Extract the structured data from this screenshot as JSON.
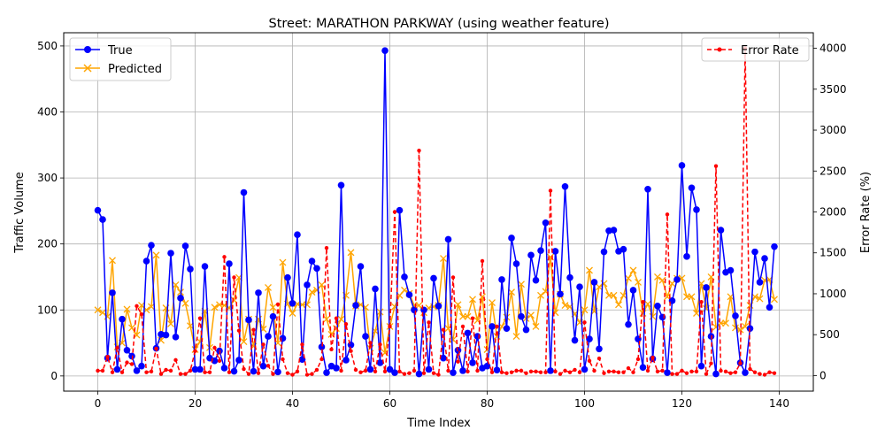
{
  "chart_data": {
    "type": "line",
    "title": "Street: MARATHON PARKWAY (using weather feature)",
    "xlabel": "Time Index",
    "ylabel": "Traffic Volume",
    "y2label": "Error Rate (%)",
    "xlim": [
      -7,
      147
    ],
    "ylim": [
      -23,
      520
    ],
    "y2lim": [
      -190,
      4190
    ],
    "xticks": [
      0,
      20,
      40,
      60,
      80,
      100,
      120,
      140
    ],
    "yticks": [
      0,
      100,
      200,
      300,
      400,
      500
    ],
    "y2ticks": [
      0,
      500,
      1000,
      1500,
      2000,
      2500,
      3000,
      3500,
      4000
    ],
    "grid": true,
    "legend_left": "top-left",
    "legend_right": "top-right",
    "series": [
      {
        "name": "True",
        "axis": "left",
        "color": "#0000ff",
        "marker": "circle",
        "values": [
          251,
          237,
          27,
          126,
          10,
          86,
          39,
          30,
          8,
          15,
          174,
          198,
          42,
          63,
          62,
          186,
          59,
          118,
          197,
          162,
          10,
          10,
          166,
          27,
          23,
          38,
          12,
          170,
          7,
          24,
          278,
          85,
          7,
          126,
          15,
          60,
          90,
          6,
          57,
          149,
          110,
          214,
          25,
          138,
          174,
          163,
          44,
          5,
          15,
          12,
          289,
          24,
          47,
          107,
          166,
          60,
          10,
          132,
          20,
          493,
          10,
          5,
          251,
          150,
          123,
          100,
          3,
          100,
          10,
          148,
          106,
          27,
          207,
          5,
          39,
          8,
          65,
          20,
          60,
          12,
          15,
          75,
          9,
          146,
          72,
          209,
          170,
          90,
          70,
          183,
          145,
          190,
          232,
          8,
          189,
          124,
          287,
          149,
          54,
          135,
          10,
          56,
          142,
          41,
          188,
          220,
          221,
          189,
          192,
          78,
          130,
          56,
          13,
          283,
          26,
          106,
          89,
          5,
          114,
          146,
          319,
          181,
          285,
          252,
          15,
          134,
          60,
          3,
          221,
          157,
          160,
          91,
          20,
          5,
          72,
          188,
          142,
          178,
          104,
          196
        ]
      },
      {
        "name": "Predicted",
        "axis": "left",
        "color": "#ffa500",
        "marker": "x",
        "values": [
          100,
          96,
          90,
          175,
          44,
          50,
          101,
          73,
          62,
          107,
          100,
          105,
          183,
          54,
          103,
          79,
          138,
          127,
          110,
          76,
          40,
          52,
          98,
          43,
          104,
          108,
          107,
          103,
          115,
          149,
          52,
          86,
          45,
          86,
          71,
          134,
          104,
          50,
          172,
          109,
          95,
          109,
          108,
          108,
          127,
          130,
          138,
          86,
          63,
          72,
          86,
          122,
          187,
          106,
          108,
          104,
          42,
          68,
          97,
          35,
          75,
          105,
          122,
          130,
          125,
          107,
          107,
          96,
          103,
          105,
          107,
          178,
          72,
          55,
          108,
          90,
          90,
          116,
          84,
          120,
          40,
          111,
          60,
          75,
          89,
          127,
          60,
          139,
          87,
          92,
          75,
          122,
          128,
          180,
          96,
          124,
          107,
          105,
          94,
          81,
          100,
          160,
          98,
          135,
          140,
          122,
          122,
          108,
          122,
          148,
          160,
          142,
          95,
          109,
          90,
          150,
          145,
          120,
          140,
          148,
          148,
          120,
          120,
          95,
          140,
          102,
          150,
          74,
          80,
          80,
          120,
          73,
          70,
          75,
          107,
          120,
          117,
          145,
          146,
          116
        ]
      },
      {
        "name": "Error Rate",
        "axis": "right",
        "color": "#ff0000",
        "marker": "dot",
        "dash": "dashed",
        "values": [
          60,
          60,
          230,
          40,
          340,
          40,
          160,
          140,
          850,
          750,
          40,
          50,
          330,
          20,
          70,
          60,
          190,
          20,
          20,
          60,
          300,
          700,
          40,
          40,
          340,
          180,
          1450,
          40,
          1200,
          550,
          80,
          20,
          560,
          30,
          380,
          120,
          20,
          870,
          200,
          30,
          10,
          50,
          380,
          10,
          20,
          70,
          200,
          1560,
          320,
          700,
          60,
          630,
          300,
          70,
          40,
          60,
          400,
          50,
          380,
          50,
          600,
          2000,
          50,
          20,
          30,
          60,
          2750,
          30,
          650,
          30,
          10,
          560,
          60,
          1200,
          170,
          600,
          50,
          700,
          60,
          1400,
          200,
          40,
          600,
          40,
          30,
          40,
          60,
          60,
          30,
          50,
          50,
          40,
          40,
          2260,
          50,
          20,
          60,
          40,
          70,
          40,
          650,
          180,
          60,
          210,
          30,
          50,
          50,
          40,
          40,
          90,
          40,
          200,
          900,
          60,
          220,
          50,
          60,
          1970,
          20,
          20,
          60,
          30,
          50,
          50,
          900,
          20,
          150,
          2560,
          60,
          50,
          30,
          40,
          150,
          4000,
          80,
          40,
          20,
          10,
          40,
          30
        ]
      }
    ]
  }
}
